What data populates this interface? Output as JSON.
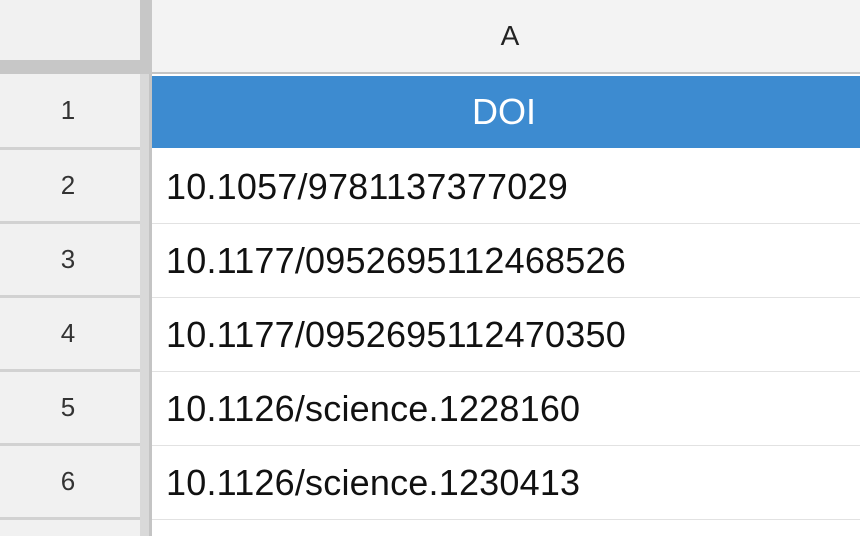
{
  "sheet": {
    "column_header": "A",
    "rows": [
      {
        "number": "1",
        "value": "DOI"
      },
      {
        "number": "2",
        "value": "10.1057/9781137377029"
      },
      {
        "number": "3",
        "value": "10.1177/0952695112468526"
      },
      {
        "number": "4",
        "value": "10.1177/0952695112470350"
      },
      {
        "number": "5",
        "value": "10.1126/science.1228160"
      },
      {
        "number": "6",
        "value": "10.1126/science.1230413"
      }
    ]
  },
  "colors": {
    "header_fill": "#3d8bd0",
    "header_text": "#ffffff",
    "gutter": "#f1f1f1"
  }
}
